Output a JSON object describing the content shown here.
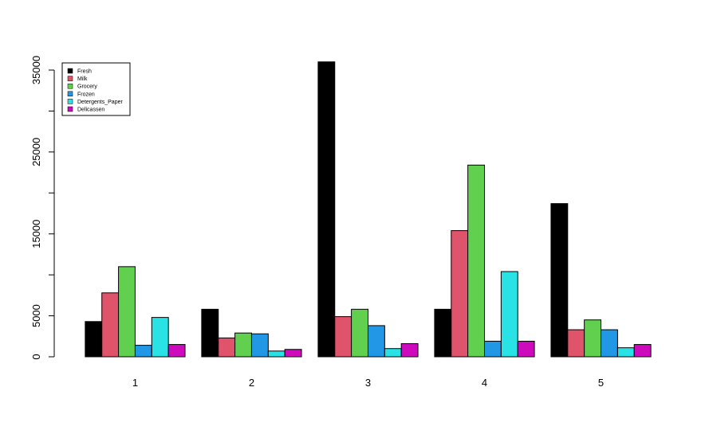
{
  "chart_data": {
    "type": "bar",
    "categories": [
      "1",
      "2",
      "3",
      "4",
      "5"
    ],
    "series": [
      {
        "name": "Fresh",
        "color": "#000000",
        "values": [
          4300,
          5800,
          36000,
          5800,
          18700
        ]
      },
      {
        "name": "Milk",
        "color": "#DF536B",
        "values": [
          7800,
          2300,
          4900,
          15400,
          3300
        ]
      },
      {
        "name": "Grocery",
        "color": "#61D04F",
        "values": [
          11000,
          2900,
          5800,
          23400,
          4500
        ]
      },
      {
        "name": "Frozen",
        "color": "#2297E6",
        "values": [
          1400,
          2800,
          3800,
          1900,
          3300
        ]
      },
      {
        "name": "Detergents_Paper",
        "color": "#28E2E5",
        "values": [
          4800,
          700,
          1000,
          10400,
          1100
        ]
      },
      {
        "name": "Delicassen",
        "color": "#CD0BBC",
        "values": [
          1500,
          900,
          1600,
          1900,
          1500
        ]
      }
    ],
    "ylim": [
      0,
      36000
    ],
    "yticks": [
      0,
      5000,
      10000,
      15000,
      20000,
      25000,
      30000,
      35000
    ],
    "legend": "top-left"
  }
}
